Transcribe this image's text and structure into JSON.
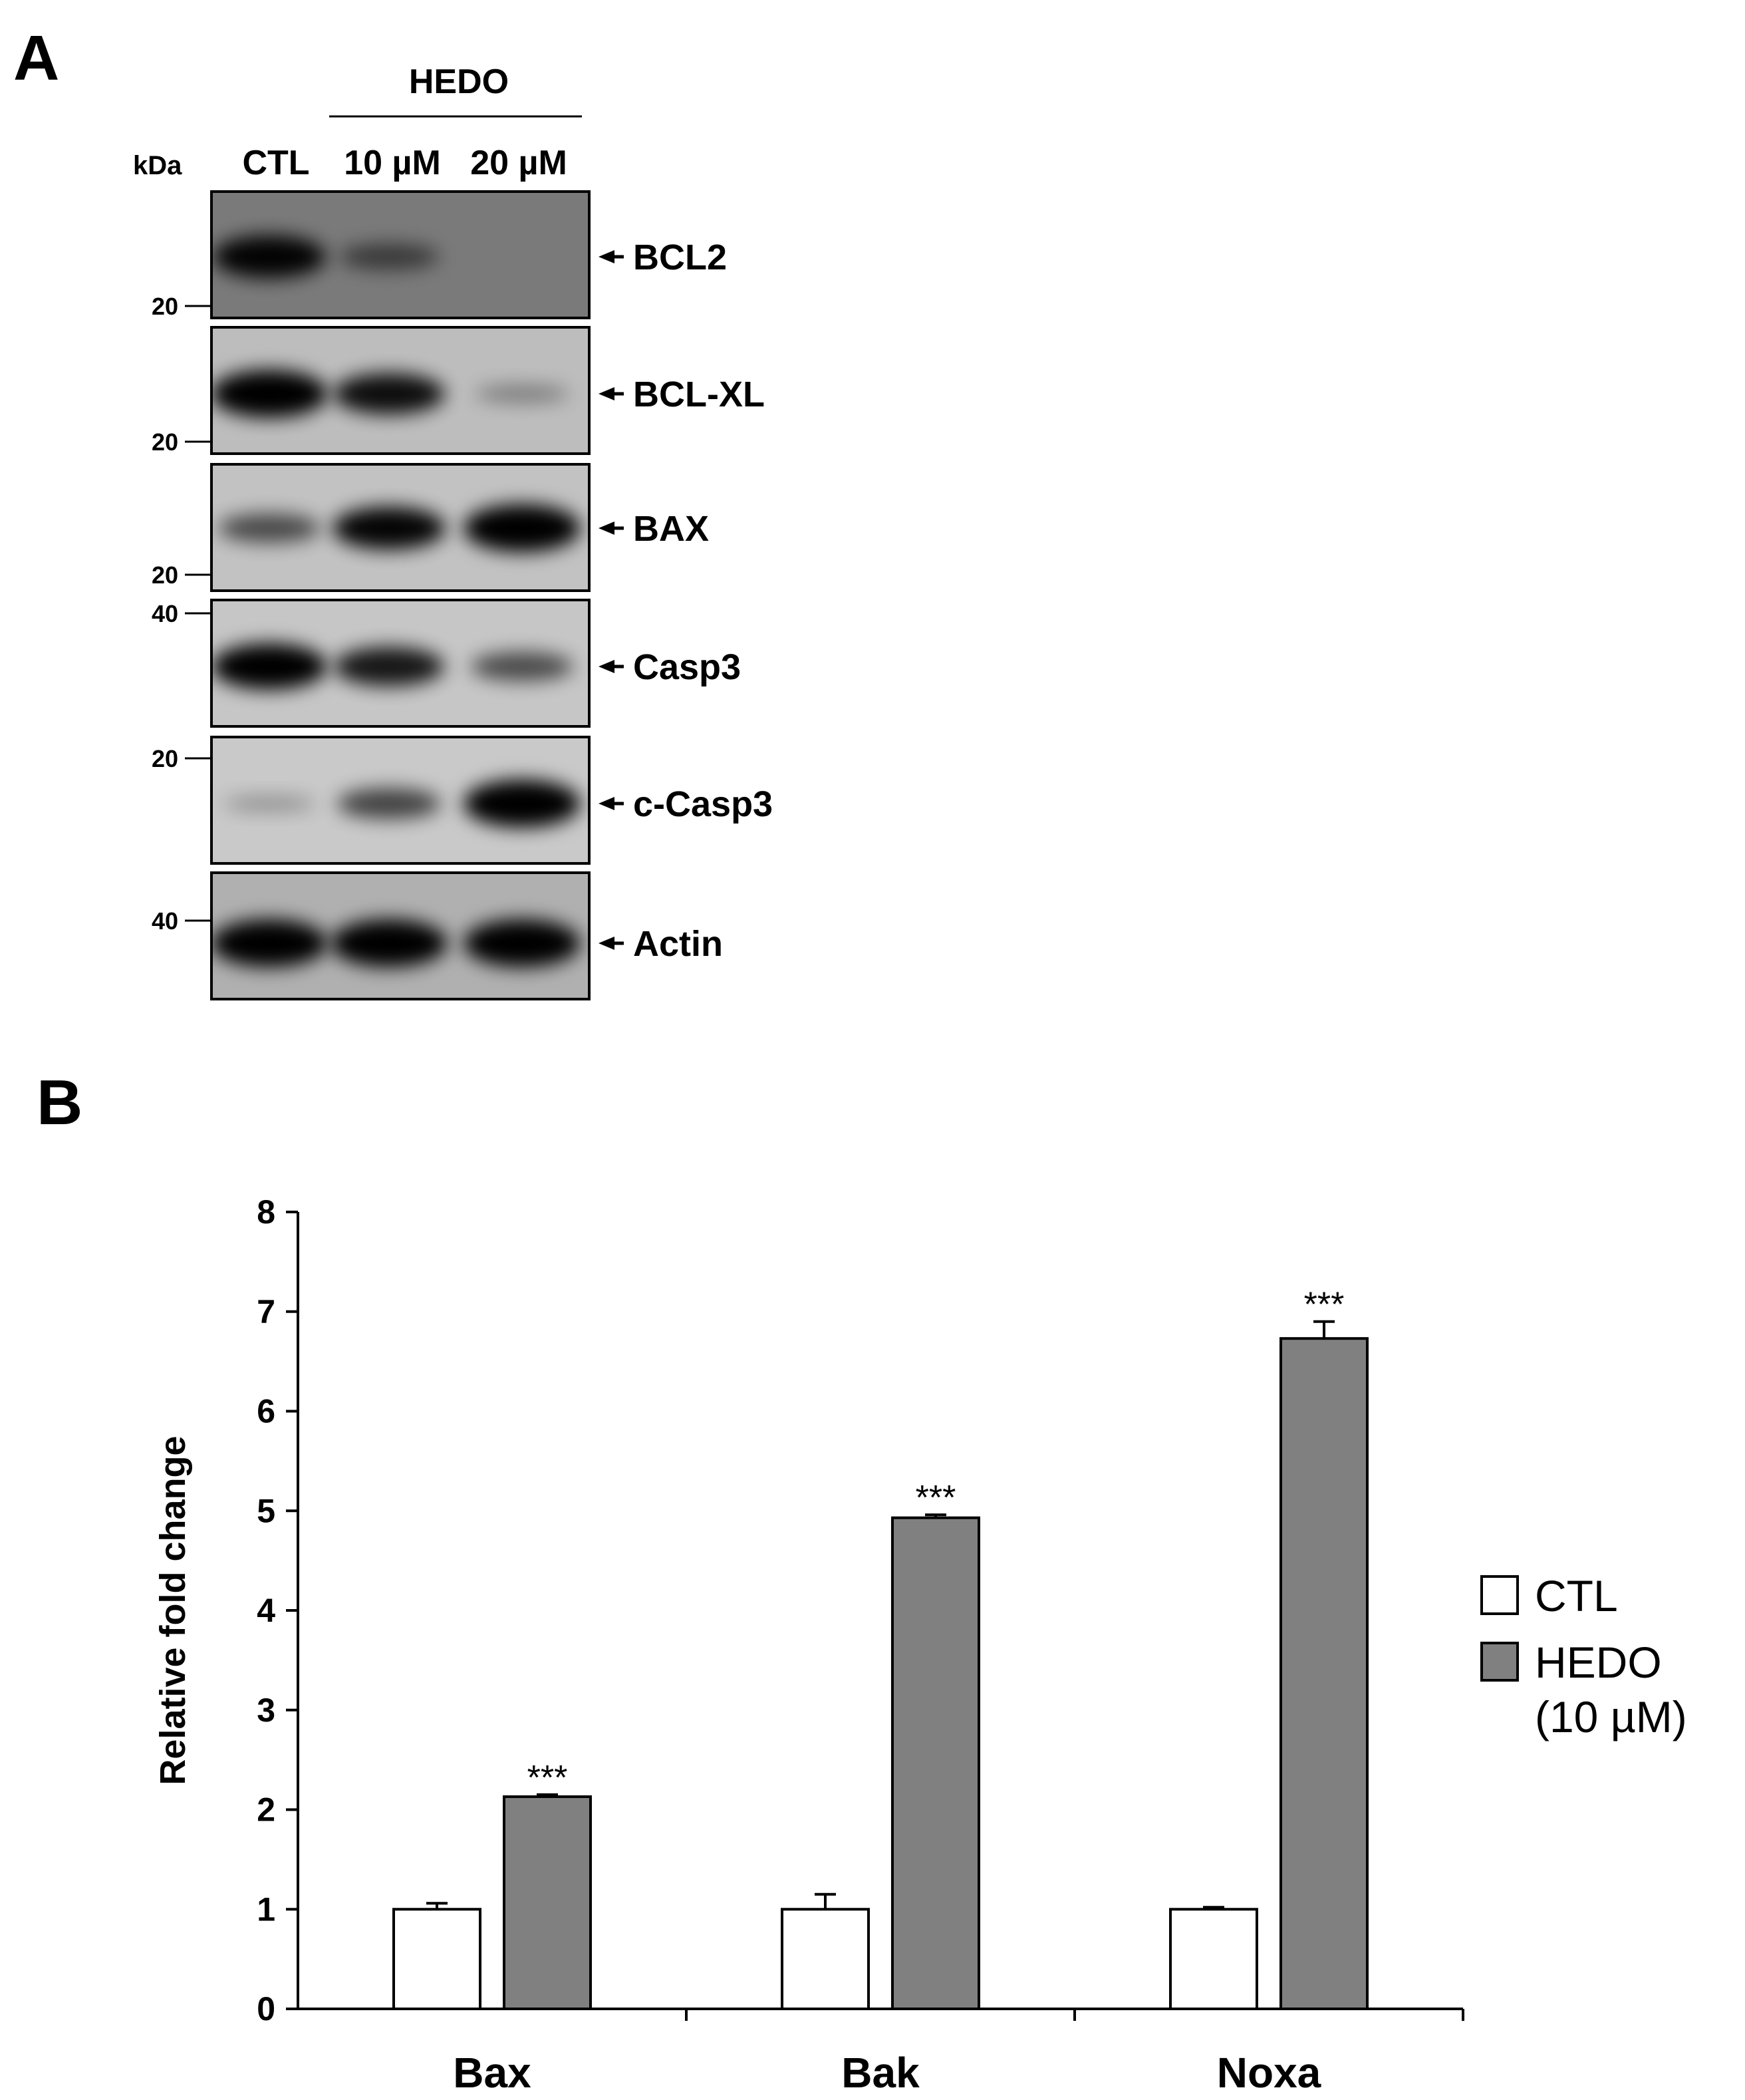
{
  "panel_a": {
    "letter": "A",
    "group_label": "HEDO",
    "kda_label": "kDa",
    "lanes": [
      "CTL",
      "10 µM",
      "20 µM"
    ],
    "blots": [
      {
        "protein": "BCL2",
        "markers": [
          "20"
        ],
        "intensity": [
          0.85,
          0.35,
          0.0
        ],
        "bg": "#7a7a7a"
      },
      {
        "protein": "BCL-XL",
        "markers": [
          "20"
        ],
        "intensity": [
          1.0,
          0.8,
          0.12
        ],
        "bg": "#bdbdbd"
      },
      {
        "protein": "BAX",
        "markers": [
          "20"
        ],
        "intensity": [
          0.45,
          0.85,
          1.0
        ],
        "bg": "#c2c2c2"
      },
      {
        "protein": "Casp3",
        "markers": [
          "40"
        ],
        "intensity": [
          0.95,
          0.75,
          0.45
        ],
        "bg": "#c6c6c6"
      },
      {
        "protein": "c-Casp3",
        "markers": [
          "20"
        ],
        "intensity": [
          0.05,
          0.5,
          1.0
        ],
        "bg": "#c9c9c9"
      },
      {
        "protein": "Actin",
        "markers": [
          "40"
        ],
        "intensity": [
          1.0,
          1.0,
          1.0
        ],
        "bg": "#b0b0b0"
      }
    ]
  },
  "panel_b": {
    "letter": "B",
    "legend": {
      "ctl": "CTL",
      "hedo_line1": "HEDO",
      "hedo_line2": "(10 µM)"
    }
  },
  "chart_data": {
    "type": "bar",
    "categories": [
      "Bax",
      "Bak",
      "Noxa"
    ],
    "series": [
      {
        "name": "CTL",
        "values": [
          1.0,
          1.0,
          1.0
        ],
        "errors": [
          0.06,
          0.15,
          0.02
        ],
        "color": "#ffffff"
      },
      {
        "name": "HEDO (10 µM)",
        "values": [
          2.13,
          4.93,
          6.73
        ],
        "errors": [
          0.02,
          0.03,
          0.17
        ],
        "color": "#808080"
      }
    ],
    "annotations": [
      "***",
      "***",
      "***"
    ],
    "ylabel": "Relative fold change",
    "xlabel": "",
    "ylim": [
      0,
      8
    ],
    "yticks": [
      0,
      1,
      2,
      3,
      4,
      5,
      6,
      7,
      8
    ],
    "legend_position": "right"
  }
}
